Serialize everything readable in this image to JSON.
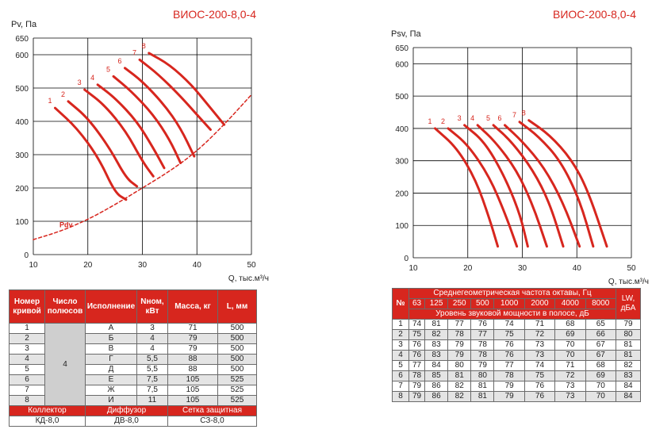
{
  "left_title": "ВИОС-200-8,0-4",
  "right_title": "ВИОС-200-8,0-4",
  "chart_data": [
    {
      "type": "line",
      "title": "ВИОС-200-8,0-4",
      "ylabel": "Pv, Па",
      "xlabel": "Q, тыс.м³/ч",
      "xlim": [
        10,
        50
      ],
      "ylim": [
        0,
        650
      ],
      "x_ticks": [
        "10",
        "20",
        "30",
        "40",
        "50"
      ],
      "y_ticks": [
        "0",
        "100",
        "200",
        "300",
        "400",
        "500",
        "600",
        "650"
      ],
      "grid": true,
      "series": [
        {
          "name": "1",
          "points": [
            [
              14,
              440
            ],
            [
              18,
              380
            ],
            [
              22,
              290
            ],
            [
              25,
              185
            ],
            [
              27,
              165
            ]
          ]
        },
        {
          "name": "2",
          "points": [
            [
              16.4,
              460
            ],
            [
              20,
              410
            ],
            [
              24,
              320
            ],
            [
              27,
              230
            ],
            [
              29,
              205
            ]
          ]
        },
        {
          "name": "3",
          "points": [
            [
              19.4,
              495
            ],
            [
              23,
              450
            ],
            [
              27,
              370
            ],
            [
              30,
              280
            ],
            [
              32,
              235
            ]
          ]
        },
        {
          "name": "4",
          "points": [
            [
              21.8,
              510
            ],
            [
              25,
              470
            ],
            [
              29,
              400
            ],
            [
              32,
              320
            ],
            [
              34,
              260
            ]
          ]
        },
        {
          "name": "5",
          "points": [
            [
              24.7,
              535
            ],
            [
              28,
              490
            ],
            [
              32,
              420
            ],
            [
              35,
              345
            ],
            [
              37,
              275
            ]
          ]
        },
        {
          "name": "6",
          "points": [
            [
              26.8,
              560
            ],
            [
              30,
              520
            ],
            [
              34,
              450
            ],
            [
              37,
              380
            ],
            [
              39.5,
              295
            ]
          ]
        },
        {
          "name": "7",
          "points": [
            [
              29.5,
              585
            ],
            [
              33,
              540
            ],
            [
              37,
              475
            ],
            [
              40,
              420
            ],
            [
              42.5,
              375
            ]
          ]
        },
        {
          "name": "8",
          "points": [
            [
              31.2,
              605
            ],
            [
              35,
              570
            ],
            [
              39,
              510
            ],
            [
              42,
              450
            ],
            [
              45,
              390
            ]
          ]
        },
        {
          "name": "Pdv",
          "dashed": true,
          "points": [
            [
              10,
              45
            ],
            [
              15,
              70
            ],
            [
              20,
              105
            ],
            [
              25,
              150
            ],
            [
              30,
              200
            ],
            [
              35,
              250
            ],
            [
              40,
              310
            ],
            [
              45,
              390
            ],
            [
              50,
              480
            ]
          ]
        }
      ]
    },
    {
      "type": "line",
      "title": "ВИОС-200-8,0-4",
      "ylabel": "Psv, Па",
      "xlabel": "Q, тыс.м³/ч",
      "xlim": [
        10,
        50
      ],
      "ylim": [
        0,
        650
      ],
      "x_ticks": [
        "10",
        "20",
        "30",
        "40",
        "50"
      ],
      "y_ticks": [
        "0",
        "100",
        "200",
        "300",
        "400",
        "500",
        "600",
        "650"
      ],
      "grid": true,
      "series": [
        {
          "name": "1",
          "points": [
            [
              14,
              400
            ],
            [
              18,
              340
            ],
            [
              21.5,
              240
            ],
            [
              24,
              120
            ],
            [
              25.5,
              35
            ]
          ]
        },
        {
          "name": "2",
          "points": [
            [
              16.4,
              400
            ],
            [
              20,
              350
            ],
            [
              24,
              250
            ],
            [
              27,
              130
            ],
            [
              29,
              35
            ]
          ]
        },
        {
          "name": "3",
          "points": [
            [
              19.4,
              410
            ],
            [
              23,
              360
            ],
            [
              26.5,
              260
            ],
            [
              29.5,
              140
            ],
            [
              31,
              35
            ]
          ]
        },
        {
          "name": "4",
          "points": [
            [
              21.8,
              410
            ],
            [
              25,
              360
            ],
            [
              29,
              270
            ],
            [
              32,
              160
            ],
            [
              34.5,
              35
            ]
          ]
        },
        {
          "name": "5",
          "points": [
            [
              24.7,
              410
            ],
            [
              28,
              360
            ],
            [
              32,
              270
            ],
            [
              35,
              170
            ],
            [
              37.5,
              35
            ]
          ]
        },
        {
          "name": "6",
          "points": [
            [
              26.8,
              410
            ],
            [
              30,
              360
            ],
            [
              34,
              280
            ],
            [
              37.5,
              170
            ],
            [
              40.5,
              35
            ]
          ]
        },
        {
          "name": "7",
          "points": [
            [
              29.5,
              420
            ],
            [
              33,
              375
            ],
            [
              37,
              300
            ],
            [
              40.5,
              180
            ],
            [
              43,
              35
            ]
          ]
        },
        {
          "name": "8",
          "points": [
            [
              31.2,
              425
            ],
            [
              35,
              380
            ],
            [
              39,
              305
            ],
            [
              42,
              210
            ],
            [
              45.5,
              35
            ]
          ]
        }
      ]
    }
  ],
  "spec_table": {
    "headers": [
      "Номер кривой",
      "Число полюсов",
      "Исполнение",
      "Nном, кВт",
      "Масса, кг",
      "L, мм"
    ],
    "poles": "4",
    "rows": [
      [
        "1",
        "А",
        "3",
        "71",
        "500"
      ],
      [
        "2",
        "Б",
        "4",
        "79",
        "500"
      ],
      [
        "3",
        "В",
        "4",
        "79",
        "500"
      ],
      [
        "4",
        "Г",
        "5,5",
        "88",
        "500"
      ],
      [
        "5",
        "Д",
        "5,5",
        "88",
        "500"
      ],
      [
        "6",
        "Е",
        "7,5",
        "105",
        "525"
      ],
      [
        "7",
        "Ж",
        "7,5",
        "105",
        "525"
      ],
      [
        "8",
        "И",
        "11",
        "105",
        "525"
      ]
    ],
    "accessory_headers": [
      "Коллектор",
      "Диффузор",
      "Сетка защитная"
    ],
    "accessory_values": [
      "КД-8,0",
      "ДВ-8,0",
      "СЗ-8,0"
    ]
  },
  "noise_table": {
    "num_header": "№",
    "freq_header": "Среднегеометрическая частота октавы, Гц",
    "freqs": [
      "63",
      "125",
      "250",
      "500",
      "1000",
      "2000",
      "4000",
      "8000"
    ],
    "power_header": "Уровень звуковой мощности в полосе, дБ",
    "lwa_header": "LW, дБА",
    "rows": [
      [
        "1",
        "74",
        "81",
        "77",
        "76",
        "74",
        "71",
        "68",
        "65",
        "79"
      ],
      [
        "2",
        "75",
        "82",
        "78",
        "77",
        "75",
        "72",
        "69",
        "66",
        "80"
      ],
      [
        "3",
        "76",
        "83",
        "79",
        "78",
        "76",
        "73",
        "70",
        "67",
        "81"
      ],
      [
        "4",
        "76",
        "83",
        "79",
        "78",
        "76",
        "73",
        "70",
        "67",
        "81"
      ],
      [
        "5",
        "77",
        "84",
        "80",
        "79",
        "77",
        "74",
        "71",
        "68",
        "82"
      ],
      [
        "6",
        "78",
        "85",
        "81",
        "80",
        "78",
        "75",
        "72",
        "69",
        "83"
      ],
      [
        "7",
        "79",
        "86",
        "82",
        "81",
        "79",
        "76",
        "73",
        "70",
        "84"
      ],
      [
        "8",
        "79",
        "86",
        "82",
        "81",
        "79",
        "76",
        "73",
        "70",
        "84"
      ]
    ]
  },
  "colors": {
    "accent": "#d7261e",
    "grid": "#000000",
    "alt_row": "#e4e4e4"
  }
}
